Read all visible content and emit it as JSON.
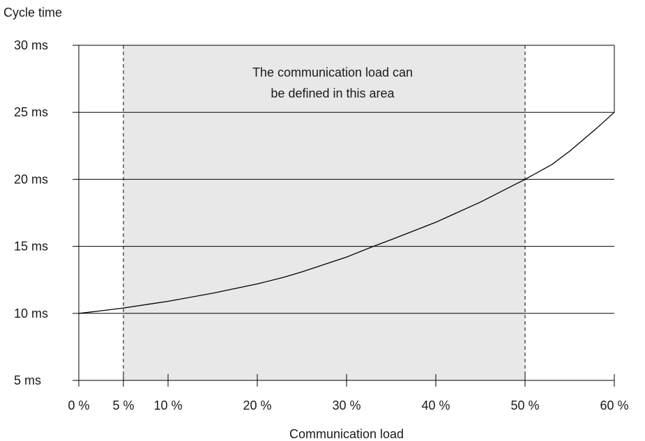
{
  "chart_data": {
    "type": "line",
    "title": "",
    "ylabel": "Cycle time",
    "xlabel": "Communication load",
    "xlim": [
      0,
      60
    ],
    "ylim": [
      5,
      30
    ],
    "grid": "horizontal",
    "x_ticks": [
      {
        "value": 0,
        "label": "0 %"
      },
      {
        "value": 5,
        "label": "5 %"
      },
      {
        "value": 10,
        "label": "10 %"
      },
      {
        "value": 20,
        "label": "20 %"
      },
      {
        "value": 30,
        "label": "30 %"
      },
      {
        "value": 40,
        "label": "40 %"
      },
      {
        "value": 50,
        "label": "50 %"
      },
      {
        "value": 60,
        "label": "60 %"
      }
    ],
    "y_ticks": [
      {
        "value": 5,
        "label": "5 ms"
      },
      {
        "value": 10,
        "label": "10 ms"
      },
      {
        "value": 15,
        "label": "15 ms"
      },
      {
        "value": 20,
        "label": "20 ms"
      },
      {
        "value": 25,
        "label": "25 ms"
      },
      {
        "value": 30,
        "label": "30 ms"
      }
    ],
    "shaded_region": {
      "x_range": [
        5,
        50
      ],
      "y_range": [
        5,
        30
      ],
      "color": "#e8e8e8",
      "annotation": [
        "The communication load can",
        "be defined in this area"
      ]
    },
    "series": [
      {
        "color": "#000000",
        "x": [
          0,
          2,
          5,
          8,
          10,
          15,
          20,
          23,
          25,
          30,
          33,
          35,
          40,
          45,
          50,
          53,
          55,
          58,
          60
        ],
        "y": [
          10.0,
          10.15,
          10.4,
          10.7,
          10.9,
          11.5,
          12.2,
          12.7,
          13.1,
          14.2,
          15.0,
          15.5,
          16.8,
          18.3,
          20.0,
          21.1,
          22.1,
          23.8,
          25.0
        ]
      }
    ]
  }
}
